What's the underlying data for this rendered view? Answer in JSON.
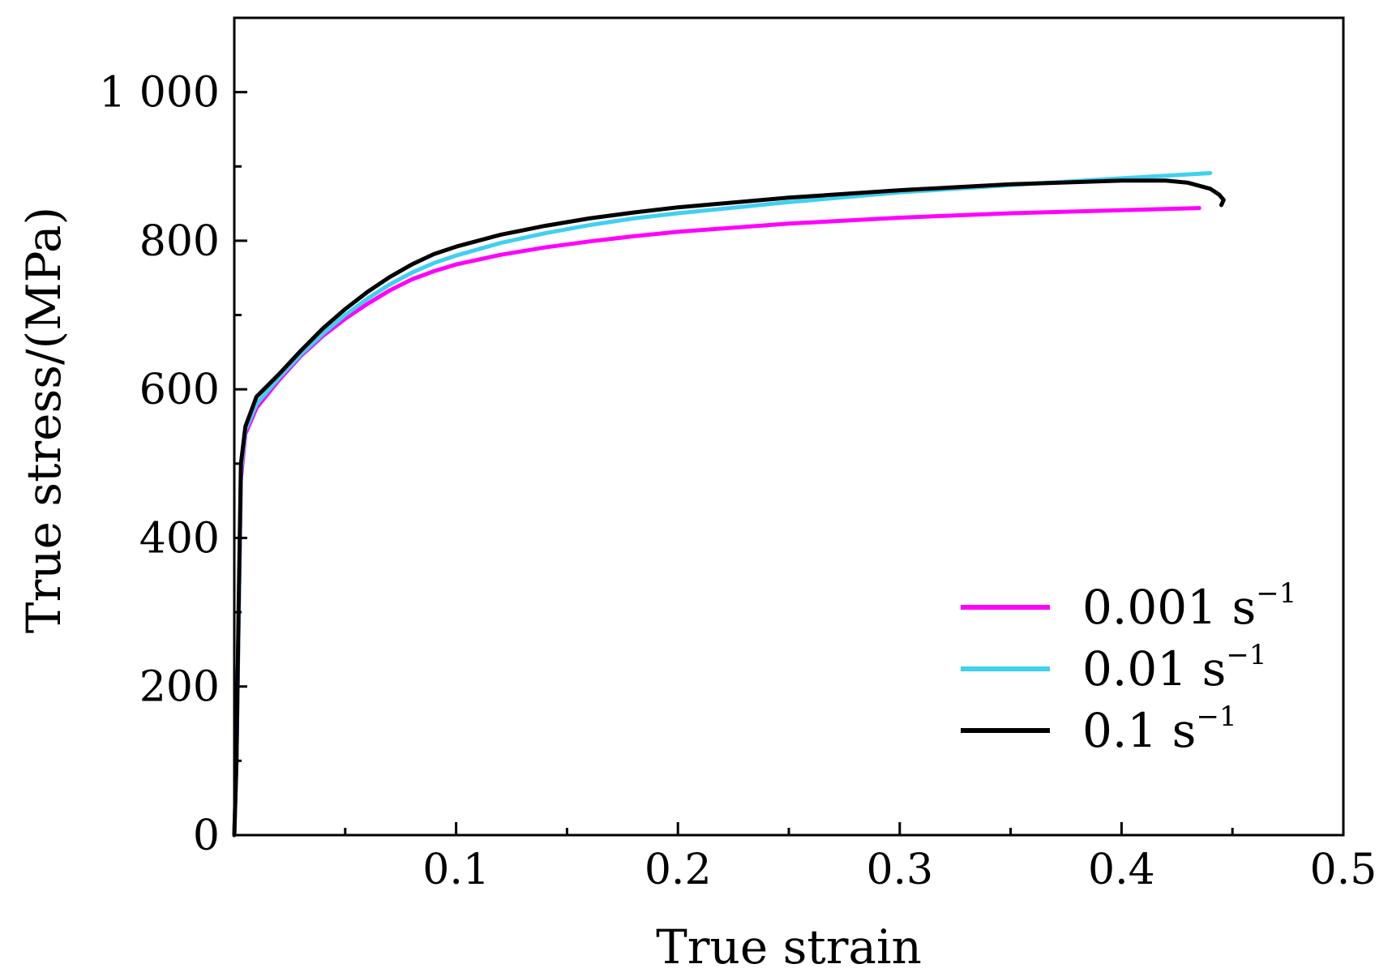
{
  "chart_data": {
    "type": "line",
    "title": "",
    "xlabel": "True strain",
    "ylabel": "True stress/(MPa)",
    "xlim": [
      0,
      0.5
    ],
    "ylim": [
      0,
      1100
    ],
    "x_ticks": [
      0.1,
      0.2,
      0.3,
      0.4,
      0.5
    ],
    "x_tick_labels": [
      "0.1",
      "0.2",
      "0.3",
      "0.4",
      "0.5"
    ],
    "y_ticks": [
      0,
      200,
      400,
      600,
      800,
      1000
    ],
    "y_tick_labels": [
      "0",
      "200",
      "400",
      "600",
      "800",
      "1 000"
    ],
    "x_minor_ticks": [
      0.05,
      0.15,
      0.25,
      0.35,
      0.45
    ],
    "y_minor_ticks": [
      100,
      300,
      500,
      700,
      900
    ],
    "grid": false,
    "legend_position": "bottom-right",
    "series": [
      {
        "name": "0.001 s",
        "name_superscript": "−1",
        "color": "#ff00ff",
        "points": [
          [
            0,
            0
          ],
          [
            0.001,
            100
          ],
          [
            0.002,
            300
          ],
          [
            0.003,
            480
          ],
          [
            0.005,
            540
          ],
          [
            0.01,
            575
          ],
          [
            0.02,
            612
          ],
          [
            0.03,
            645
          ],
          [
            0.04,
            672
          ],
          [
            0.05,
            695
          ],
          [
            0.06,
            715
          ],
          [
            0.07,
            733
          ],
          [
            0.08,
            748
          ],
          [
            0.09,
            759
          ],
          [
            0.1,
            768
          ],
          [
            0.12,
            781
          ],
          [
            0.14,
            791
          ],
          [
            0.16,
            799
          ],
          [
            0.18,
            806
          ],
          [
            0.2,
            812
          ],
          [
            0.25,
            823
          ],
          [
            0.3,
            831
          ],
          [
            0.35,
            837
          ],
          [
            0.4,
            841
          ],
          [
            0.435,
            844
          ]
        ]
      },
      {
        "name": "0.01 s",
        "name_superscript": "−1",
        "color": "#40d0f0",
        "points": [
          [
            0,
            0
          ],
          [
            0.001,
            100
          ],
          [
            0.002,
            300
          ],
          [
            0.003,
            490
          ],
          [
            0.005,
            545
          ],
          [
            0.01,
            580
          ],
          [
            0.02,
            615
          ],
          [
            0.03,
            647
          ],
          [
            0.04,
            675
          ],
          [
            0.05,
            700
          ],
          [
            0.06,
            722
          ],
          [
            0.07,
            741
          ],
          [
            0.08,
            757
          ],
          [
            0.09,
            770
          ],
          [
            0.1,
            780
          ],
          [
            0.12,
            797
          ],
          [
            0.14,
            810
          ],
          [
            0.16,
            821
          ],
          [
            0.18,
            830
          ],
          [
            0.2,
            837
          ],
          [
            0.25,
            852
          ],
          [
            0.3,
            865
          ],
          [
            0.35,
            875
          ],
          [
            0.4,
            884
          ],
          [
            0.44,
            891
          ]
        ]
      },
      {
        "name": "0.1 s",
        "name_superscript": "−1",
        "color": "#000000",
        "points": [
          [
            0,
            0
          ],
          [
            0.001,
            100
          ],
          [
            0.002,
            320
          ],
          [
            0.003,
            500
          ],
          [
            0.005,
            550
          ],
          [
            0.01,
            590
          ],
          [
            0.02,
            620
          ],
          [
            0.03,
            652
          ],
          [
            0.04,
            682
          ],
          [
            0.05,
            708
          ],
          [
            0.06,
            731
          ],
          [
            0.07,
            751
          ],
          [
            0.08,
            768
          ],
          [
            0.09,
            782
          ],
          [
            0.1,
            792
          ],
          [
            0.12,
            808
          ],
          [
            0.14,
            820
          ],
          [
            0.16,
            830
          ],
          [
            0.18,
            838
          ],
          [
            0.2,
            845
          ],
          [
            0.25,
            858
          ],
          [
            0.3,
            868
          ],
          [
            0.35,
            876
          ],
          [
            0.4,
            881
          ],
          [
            0.42,
            881
          ],
          [
            0.43,
            878
          ],
          [
            0.44,
            870
          ],
          [
            0.444,
            862
          ],
          [
            0.446,
            855
          ],
          [
            0.445,
            848
          ]
        ]
      }
    ]
  }
}
